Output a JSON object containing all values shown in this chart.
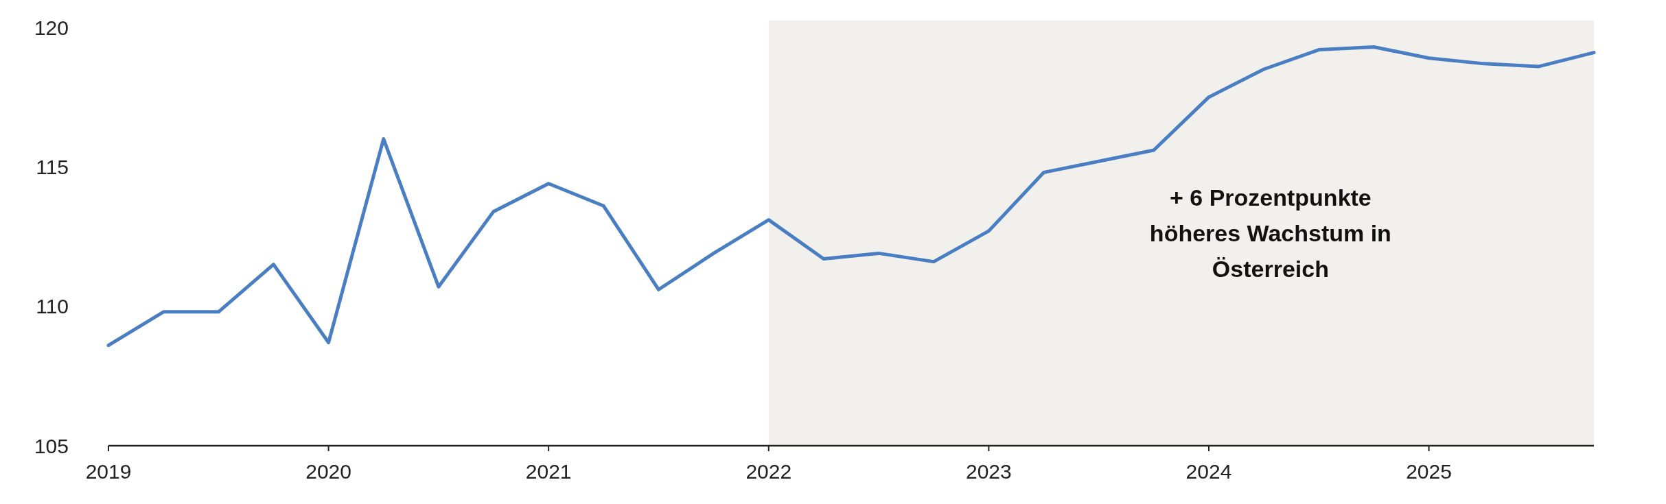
{
  "chart_data": {
    "type": "line",
    "x": [
      2019,
      2019.25,
      2019.5,
      2019.75,
      2020,
      2020.25,
      2020.5,
      2020.75,
      2021,
      2021.25,
      2021.5,
      2021.75,
      2022,
      2022.25,
      2022.5,
      2022.75,
      2023,
      2023.25,
      2023.5,
      2023.75,
      2024,
      2024.25,
      2024.5,
      2024.75,
      2025,
      2025.25,
      2025.5,
      2025.75
    ],
    "series": [
      {
        "color": "#4a7ec2",
        "values": [
          108.6,
          109.8,
          109.8,
          111.5,
          108.7,
          116.0,
          110.7,
          113.4,
          114.4,
          113.6,
          110.6,
          111.9,
          113.1,
          111.7,
          111.9,
          111.6,
          112.7,
          114.8,
          115.2,
          115.6,
          117.5,
          118.5,
          119.2,
          119.3,
          118.9,
          118.7,
          118.6,
          119.1
        ]
      }
    ],
    "xlim": [
      2019,
      2025.75
    ],
    "xticks": [
      2019,
      2020,
      2021,
      2022,
      2023,
      2024,
      2025
    ],
    "ylim": [
      105,
      120
    ],
    "yticks": [
      105,
      110,
      115,
      120
    ],
    "bands": [
      {
        "axis": "x",
        "from": 2022,
        "to": 2025.75,
        "color": "#f2f0ed"
      }
    ],
    "annotations": [
      "+ 6 Prozentpunkte höheres Wachstum in Österreich"
    ],
    "grid": false,
    "marker": "none",
    "line_style": "solid"
  }
}
